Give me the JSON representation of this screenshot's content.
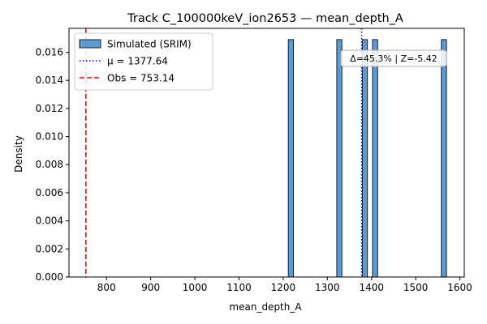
{
  "chart_data": {
    "type": "bar",
    "title": "Track C_100000keV_ion2653 — mean_depth_A",
    "xlabel": "mean_depth_A",
    "ylabel": "Density",
    "xlim": [
      715,
      1610
    ],
    "ylim": [
      0,
      0.0177
    ],
    "xticks": [
      800,
      900,
      1000,
      1100,
      1200,
      1300,
      1400,
      1500,
      1600
    ],
    "yticks": [
      0.0,
      0.002,
      0.004,
      0.006,
      0.008,
      0.01,
      0.012,
      0.014,
      0.016
    ],
    "ytick_labels": [
      "0.000",
      "0.002",
      "0.004",
      "0.006",
      "0.008",
      "0.010",
      "0.012",
      "0.014",
      "0.016"
    ],
    "grid": false,
    "legend_position": "top-left",
    "series": [
      {
        "name": "Simulated (SRIM)",
        "color": "#5b9bd5",
        "bars": [
          {
            "x0": 1211.6,
            "x1": 1223.2,
            "density": 0.0169
          },
          {
            "x0": 1321.3,
            "x1": 1332.9,
            "density": 0.0169
          },
          {
            "x0": 1379.1,
            "x1": 1390.7,
            "density": 0.0169
          },
          {
            "x0": 1402.2,
            "x1": 1413.8,
            "density": 0.0169
          },
          {
            "x0": 1558.1,
            "x1": 1569.7,
            "density": 0.0169
          }
        ]
      }
    ],
    "lines": [
      {
        "name": "μ = 1377.64",
        "x": 1377.64,
        "color": "#0000ff",
        "style": "dotted"
      },
      {
        "name": "Obs = 753.14",
        "x": 753.14,
        "color": "#ff0000",
        "style": "dashed"
      }
    ],
    "annotation": "Δ=45.3% | Z=-5.42"
  }
}
